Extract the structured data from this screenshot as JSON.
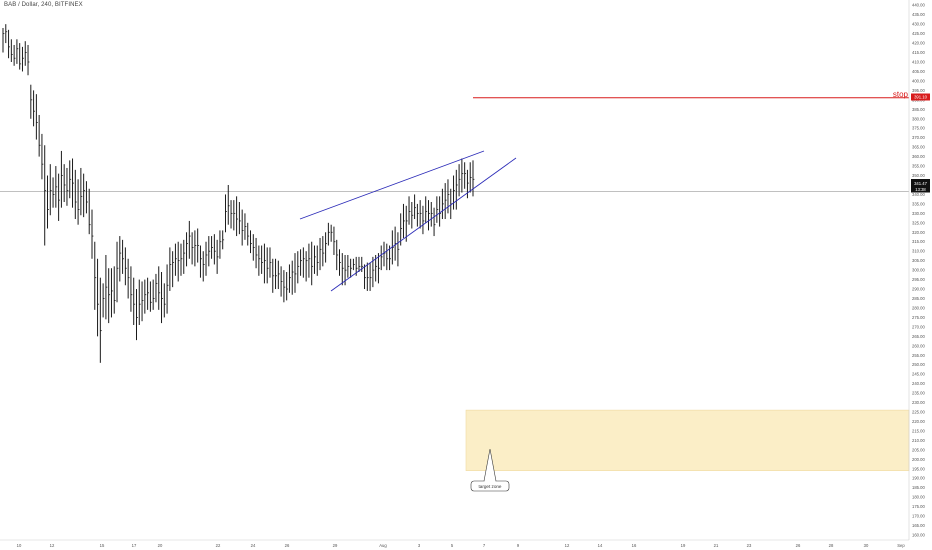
{
  "header": {
    "symbol_title": "BAB / Dollar, 240, BITFINEX"
  },
  "chart_data": {
    "type": "ohlc",
    "ylim": [
      160,
      440
    ],
    "y_ticks": [
      160,
      165,
      170,
      175,
      180,
      185,
      190,
      195,
      200,
      205,
      210,
      215,
      220,
      225,
      230,
      235,
      240,
      245,
      250,
      255,
      260,
      265,
      270,
      275,
      280,
      285,
      290,
      295,
      300,
      305,
      310,
      315,
      320,
      325,
      330,
      335,
      340,
      345,
      350,
      355,
      360,
      365,
      370,
      375,
      380,
      385,
      390,
      395,
      400,
      405,
      410,
      415,
      420,
      425,
      430,
      435,
      440
    ],
    "x_tick_labels": [
      "10",
      "12",
      "15",
      "17",
      "20",
      "22",
      "24",
      "26",
      "29",
      "Aug",
      "3",
      "5",
      "7",
      "9",
      "12",
      "14",
      "16",
      "19",
      "21",
      "23",
      "26",
      "28",
      "30",
      "Sep"
    ],
    "last_price": {
      "value": "341.47",
      "countdown": "13:38"
    },
    "stop": {
      "label": "stop",
      "price": "391.10",
      "value": 391.1
    },
    "target_zone": {
      "label": "target zone",
      "low": 194,
      "high": 226
    },
    "bars": [
      [
        415,
        428,
        425
      ],
      [
        420,
        430,
        426
      ],
      [
        412,
        427,
        418
      ],
      [
        410,
        422,
        414
      ],
      [
        408,
        419,
        412
      ],
      [
        409,
        422,
        417
      ],
      [
        406,
        420,
        409
      ],
      [
        405,
        418,
        412
      ],
      [
        408,
        421,
        415
      ],
      [
        403,
        419,
        410
      ],
      [
        380,
        398,
        390
      ],
      [
        376,
        395,
        384
      ],
      [
        369,
        393,
        378
      ],
      [
        360,
        382,
        366
      ],
      [
        348,
        372,
        356
      ],
      [
        313,
        366,
        342
      ],
      [
        322,
        350,
        332
      ],
      [
        329,
        356,
        342
      ],
      [
        333,
        349,
        340
      ],
      [
        333,
        355,
        344
      ],
      [
        326,
        351,
        337
      ],
      [
        333,
        363,
        350
      ],
      [
        336,
        356,
        345
      ],
      [
        334,
        354,
        342
      ],
      [
        338,
        358,
        348
      ],
      [
        333,
        359,
        346
      ],
      [
        327,
        353,
        336
      ],
      [
        324,
        348,
        332
      ],
      [
        329,
        354,
        339
      ],
      [
        328,
        351,
        342
      ],
      [
        330,
        347,
        336
      ],
      [
        319,
        343,
        324
      ],
      [
        306,
        332,
        318
      ],
      [
        279,
        315,
        296
      ],
      [
        265,
        306,
        282
      ],
      [
        251,
        296,
        268
      ],
      [
        275,
        293,
        285
      ],
      [
        274,
        308,
        291
      ],
      [
        272,
        301,
        287
      ],
      [
        275,
        301,
        289
      ],
      [
        277,
        302,
        284
      ],
      [
        283,
        315,
        301
      ],
      [
        294,
        318,
        309
      ],
      [
        298,
        316,
        306
      ],
      [
        292,
        312,
        301
      ],
      [
        285,
        306,
        296
      ],
      [
        278,
        302,
        287
      ],
      [
        271,
        296,
        282
      ],
      [
        263,
        290,
        275
      ],
      [
        271,
        295,
        282
      ],
      [
        273,
        294,
        284
      ],
      [
        277,
        295,
        287
      ],
      [
        279,
        296,
        288
      ],
      [
        278,
        294,
        283
      ],
      [
        279,
        295,
        285
      ],
      [
        283,
        298,
        293
      ],
      [
        279,
        302,
        288
      ],
      [
        272,
        299,
        285
      ],
      [
        275,
        293,
        282
      ],
      [
        277,
        303,
        292
      ],
      [
        289,
        312,
        303
      ],
      [
        291,
        310,
        304
      ],
      [
        297,
        314,
        306
      ],
      [
        294,
        315,
        305
      ],
      [
        297,
        314,
        306
      ],
      [
        298,
        316,
        309
      ],
      [
        302,
        320,
        314
      ],
      [
        306,
        326,
        318
      ],
      [
        303,
        320,
        312
      ],
      [
        302,
        321,
        313
      ],
      [
        304,
        322,
        313
      ],
      [
        296,
        313,
        306
      ],
      [
        294,
        310,
        303
      ],
      [
        297,
        315,
        308
      ],
      [
        302,
        318,
        310
      ],
      [
        306,
        318,
        312
      ],
      [
        303,
        319,
        310
      ],
      [
        298,
        316,
        307
      ],
      [
        306,
        321,
        315
      ],
      [
        311,
        321,
        316
      ],
      [
        320,
        340,
        331
      ],
      [
        324,
        345,
        334
      ],
      [
        322,
        337,
        330
      ],
      [
        321,
        337,
        330
      ],
      [
        318,
        339,
        327
      ],
      [
        319,
        336,
        326
      ],
      [
        313,
        332,
        321
      ],
      [
        316,
        330,
        323
      ],
      [
        313,
        325,
        318
      ],
      [
        309,
        321,
        314
      ],
      [
        305,
        319,
        312
      ],
      [
        301,
        317,
        308
      ],
      [
        297,
        313,
        306
      ],
      [
        298,
        313,
        304
      ],
      [
        293,
        314,
        305
      ],
      [
        293,
        312,
        301
      ],
      [
        296,
        312,
        304
      ],
      [
        288,
        306,
        297
      ],
      [
        290,
        306,
        297
      ],
      [
        290,
        305,
        298
      ],
      [
        286,
        302,
        294
      ],
      [
        283,
        300,
        291
      ],
      [
        284,
        299,
        290
      ],
      [
        288,
        303,
        296
      ],
      [
        287,
        305,
        299
      ],
      [
        288,
        309,
        298
      ],
      [
        293,
        310,
        302
      ],
      [
        297,
        311,
        305
      ],
      [
        296,
        312,
        306
      ],
      [
        294,
        310,
        305
      ],
      [
        296,
        314,
        306
      ],
      [
        292,
        315,
        302
      ],
      [
        298,
        313,
        307
      ],
      [
        297,
        313,
        304
      ],
      [
        300,
        317,
        311
      ],
      [
        302,
        318,
        309
      ],
      [
        304,
        320,
        314
      ],
      [
        313,
        325,
        320
      ],
      [
        315,
        324,
        320
      ],
      [
        308,
        323,
        315
      ],
      [
        300,
        316,
        308
      ],
      [
        297,
        311,
        304
      ],
      [
        292,
        309,
        301
      ],
      [
        292,
        308,
        300
      ],
      [
        296,
        308,
        302
      ],
      [
        296,
        306,
        301
      ],
      [
        300,
        306,
        303
      ],
      [
        297,
        307,
        301
      ],
      [
        299,
        307,
        302
      ],
      [
        299,
        307,
        302
      ],
      [
        290,
        303,
        296
      ],
      [
        289,
        304,
        296
      ],
      [
        289,
        304,
        296
      ],
      [
        291,
        307,
        300
      ],
      [
        294,
        308,
        302
      ],
      [
        293,
        309,
        301
      ],
      [
        300,
        313,
        307
      ],
      [
        302,
        315,
        309
      ],
      [
        300,
        314,
        306
      ],
      [
        300,
        313,
        306
      ],
      [
        303,
        321,
        312
      ],
      [
        305,
        323,
        314
      ],
      [
        302,
        320,
        311
      ],
      [
        313,
        330,
        322
      ],
      [
        317,
        335,
        326
      ],
      [
        315,
        334,
        326
      ],
      [
        324,
        339,
        331
      ],
      [
        322,
        336,
        329
      ],
      [
        327,
        340,
        333
      ],
      [
        323,
        335,
        330
      ],
      [
        322,
        337,
        330
      ],
      [
        319,
        334,
        326
      ],
      [
        325,
        339,
        331
      ],
      [
        321,
        337,
        330
      ],
      [
        323,
        336,
        330
      ],
      [
        318,
        333,
        324
      ],
      [
        325,
        339,
        332
      ],
      [
        323,
        339,
        330
      ],
      [
        327,
        343,
        335
      ],
      [
        327,
        346,
        337
      ],
      [
        330,
        348,
        340
      ],
      [
        327,
        343,
        335
      ],
      [
        332,
        350,
        342
      ],
      [
        332,
        353,
        345
      ],
      [
        339,
        356,
        348
      ],
      [
        341,
        359,
        351
      ],
      [
        343,
        357,
        351
      ],
      [
        338,
        353,
        346
      ],
      [
        341,
        357,
        349
      ],
      [
        339,
        358,
        348
      ]
    ]
  },
  "colors": {
    "bars": "#1a1a1a",
    "pattern_lines": "#2c2cb8",
    "stop_line": "#d81b1b",
    "zone_fill": "#fbeec7",
    "zone_border": "#f0d9a0",
    "price_line": "#9a9a9a"
  }
}
